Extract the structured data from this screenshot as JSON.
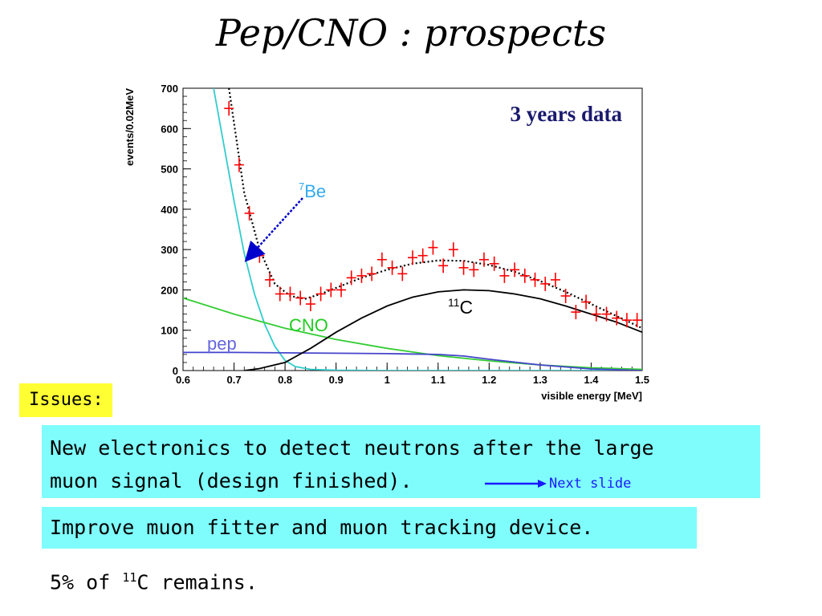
{
  "slide": {
    "title": "Pep/CNO : prospects"
  },
  "chart_data": {
    "type": "scatter",
    "title": "3 years data",
    "xlabel": "visible energy [MeV]",
    "ylabel": "events/0.02MeV",
    "xlim": [
      0.6,
      1.5
    ],
    "ylim": [
      0,
      700
    ],
    "xticks": [
      "0.6",
      "0.7",
      "0.8",
      "0.9",
      "1",
      "1.1",
      "1.2",
      "1.3",
      "1.4",
      "1.5"
    ],
    "yticks": [
      "0",
      "100",
      "200",
      "300",
      "400",
      "500",
      "600",
      "700"
    ],
    "series": [
      {
        "name": "data",
        "style": "points",
        "color": "#ff0000",
        "x": [
          0.69,
          0.71,
          0.73,
          0.75,
          0.77,
          0.79,
          0.81,
          0.83,
          0.85,
          0.87,
          0.89,
          0.91,
          0.93,
          0.95,
          0.97,
          0.99,
          1.01,
          1.03,
          1.05,
          1.07,
          1.09,
          1.11,
          1.13,
          1.15,
          1.17,
          1.19,
          1.21,
          1.23,
          1.25,
          1.27,
          1.29,
          1.31,
          1.33,
          1.35,
          1.37,
          1.39,
          1.41,
          1.43,
          1.45,
          1.47,
          1.49
        ],
        "y": [
          650,
          510,
          390,
          285,
          225,
          190,
          190,
          180,
          165,
          190,
          200,
          200,
          230,
          235,
          240,
          275,
          255,
          240,
          280,
          285,
          305,
          260,
          300,
          255,
          250,
          275,
          265,
          235,
          250,
          235,
          225,
          215,
          225,
          185,
          145,
          170,
          140,
          140,
          130,
          125,
          125
        ]
      },
      {
        "name": "fit",
        "style": "dotted",
        "color": "#000000",
        "x": [
          0.69,
          0.72,
          0.75,
          0.78,
          0.81,
          0.84,
          0.87,
          0.9,
          0.95,
          1.0,
          1.05,
          1.1,
          1.15,
          1.2,
          1.25,
          1.3,
          1.35,
          1.4,
          1.45,
          1.5
        ],
        "y": [
          700,
          440,
          300,
          215,
          185,
          178,
          190,
          205,
          230,
          250,
          265,
          273,
          272,
          262,
          245,
          222,
          195,
          165,
          135,
          105
        ]
      },
      {
        "name": "7Be",
        "style": "line",
        "color": "#33cccc",
        "x": [
          0.66,
          0.68,
          0.7,
          0.72,
          0.74,
          0.76,
          0.78,
          0.8,
          0.82,
          0.85,
          0.9,
          1.0,
          1.1,
          1.2,
          1.3,
          1.4,
          1.5
        ],
        "y": [
          700,
          560,
          420,
          290,
          190,
          115,
          60,
          25,
          10,
          3,
          1,
          0,
          0,
          0,
          0,
          0,
          0
        ]
      },
      {
        "name": "CNO",
        "style": "line",
        "color": "#33cc33",
        "x": [
          0.6,
          0.7,
          0.8,
          0.9,
          1.0,
          1.1,
          1.2,
          1.3,
          1.4,
          1.5
        ],
        "y": [
          180,
          140,
          105,
          77,
          55,
          37,
          24,
          14,
          7,
          3
        ]
      },
      {
        "name": "pep",
        "style": "line",
        "color": "#4444cc",
        "x": [
          0.6,
          0.7,
          0.8,
          0.9,
          1.0,
          1.1,
          1.15,
          1.2,
          1.3,
          1.4,
          1.5
        ],
        "y": [
          45,
          45,
          44,
          43,
          42,
          40,
          36,
          28,
          14,
          4,
          0
        ]
      },
      {
        "name": "11C",
        "style": "line",
        "color": "#000000",
        "x": [
          0.72,
          0.75,
          0.8,
          0.85,
          0.9,
          0.95,
          1.0,
          1.05,
          1.1,
          1.15,
          1.2,
          1.25,
          1.3,
          1.35,
          1.4,
          1.45,
          1.5
        ],
        "y": [
          0,
          5,
          20,
          55,
          95,
          130,
          160,
          182,
          195,
          200,
          198,
          190,
          178,
          160,
          140,
          120,
          95
        ]
      }
    ],
    "labels": {
      "be7_mass": "7",
      "be7_elem": "Be",
      "cno": "CNO",
      "pep": "pep",
      "c11_mass": "11",
      "c11_elem": "C"
    },
    "colors": {
      "be7_label": "#33aaee",
      "cno_label": "#22cc22",
      "pep_label": "#6666dd",
      "title": "#1a1a6e",
      "arrow": "#0000cc"
    }
  },
  "issues": {
    "label": "Issues:"
  },
  "electronics": {
    "line1": "New electronics to detect neutrons after the large",
    "line2": "muon signal (design finished).",
    "next_slide": "Next slide"
  },
  "fitter": {
    "text": "Improve muon fitter and muon tracking device."
  },
  "remains": {
    "prefix": "5% of ",
    "mass": "11",
    "suffix": "C remains."
  }
}
